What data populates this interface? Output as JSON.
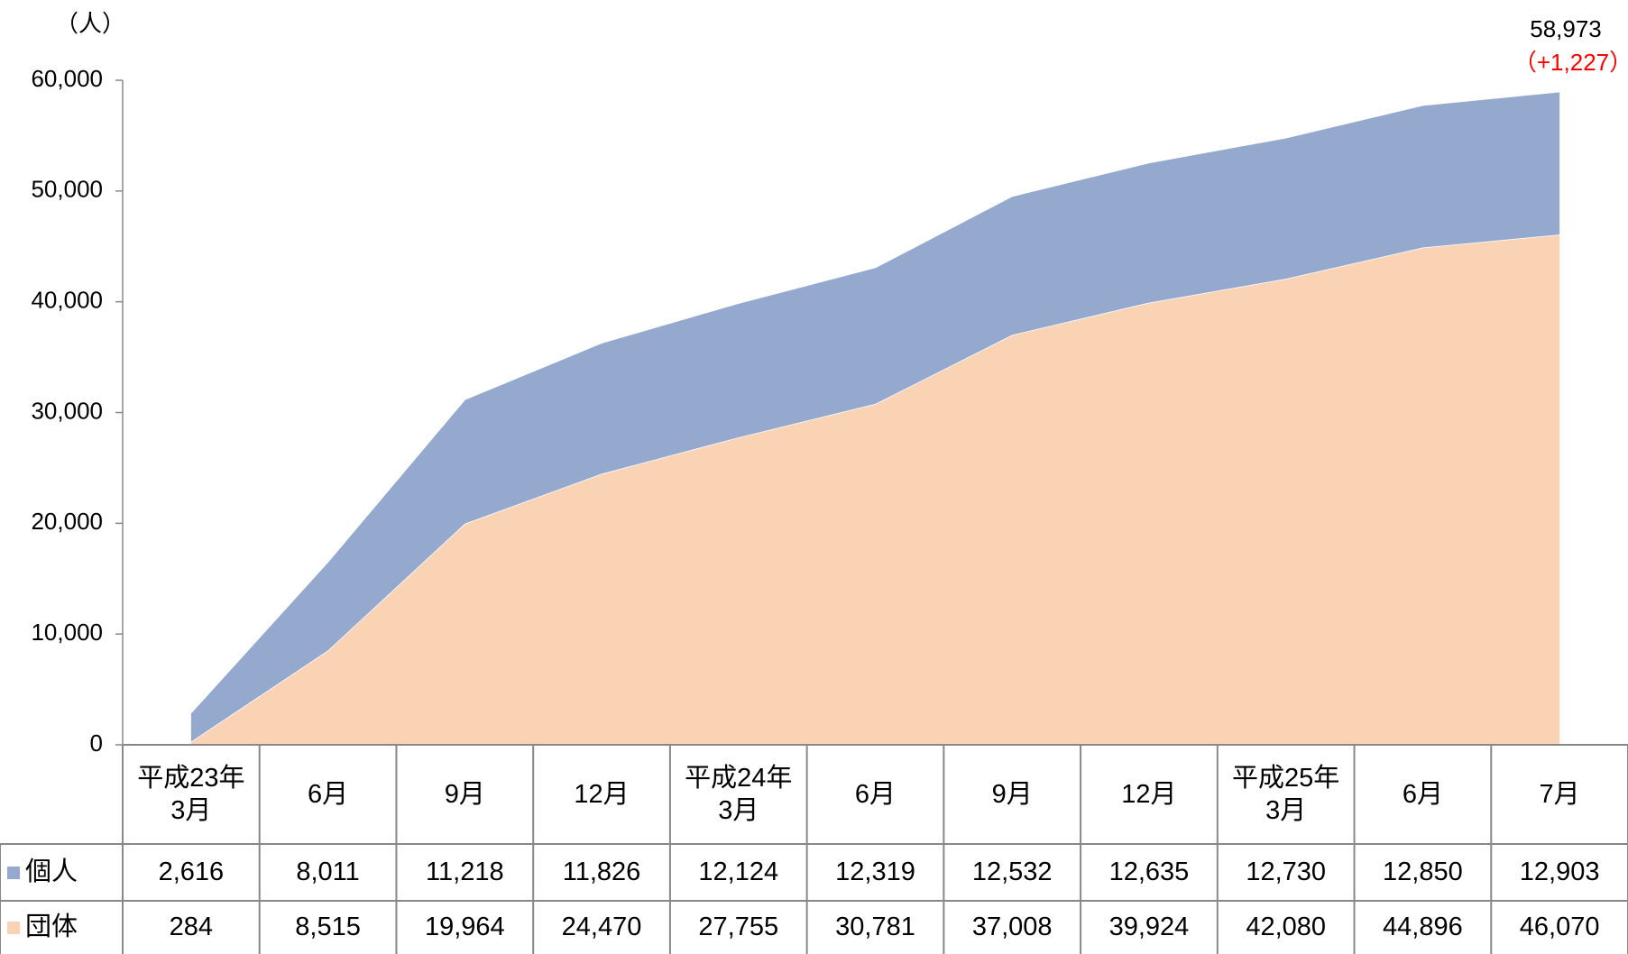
{
  "chart_data": {
    "type": "stacked-area",
    "y_label": "（人）",
    "categories": [
      "平成23年\n3月",
      "6月",
      "9月",
      "12月",
      "平成24年\n3月",
      "6月",
      "9月",
      "12月",
      "平成25年\n3月",
      "6月",
      "7月"
    ],
    "series": [
      {
        "name": "個人",
        "color": "#95a9cf",
        "values": [
          2616,
          8011,
          11218,
          11826,
          12124,
          12319,
          12532,
          12635,
          12730,
          12850,
          12903
        ],
        "value_labels": [
          "2,616",
          "8,011",
          "11,218",
          "11,826",
          "12,124",
          "12,319",
          "12,532",
          "12,635",
          "12,730",
          "12,850",
          "12,903"
        ]
      },
      {
        "name": "団体",
        "color": "#fad3b4",
        "values": [
          284,
          8515,
          19964,
          24470,
          27755,
          30781,
          37008,
          39924,
          42080,
          44896,
          46070
        ],
        "value_labels": [
          "284",
          "8,515",
          "19,964",
          "24,470",
          "27,755",
          "30,781",
          "37,008",
          "39,924",
          "42,080",
          "44,896",
          "46,070"
        ]
      }
    ],
    "ylim": [
      0,
      60000
    ],
    "yticks": [
      0,
      {
        "value": 10000,
        "label": "10,000"
      },
      {
        "value": 20000,
        "label": "20,000"
      },
      {
        "value": 30000,
        "label": "30,000"
      },
      {
        "value": 40000,
        "label": "40,000"
      },
      {
        "value": 50000,
        "label": "50,000"
      },
      {
        "value": 60000,
        "label": "60,000"
      }
    ],
    "annotations": [
      {
        "text": "58,973",
        "color": "#000000"
      },
      {
        "text": "（+1,227）",
        "color": "#ff0000"
      }
    ]
  }
}
